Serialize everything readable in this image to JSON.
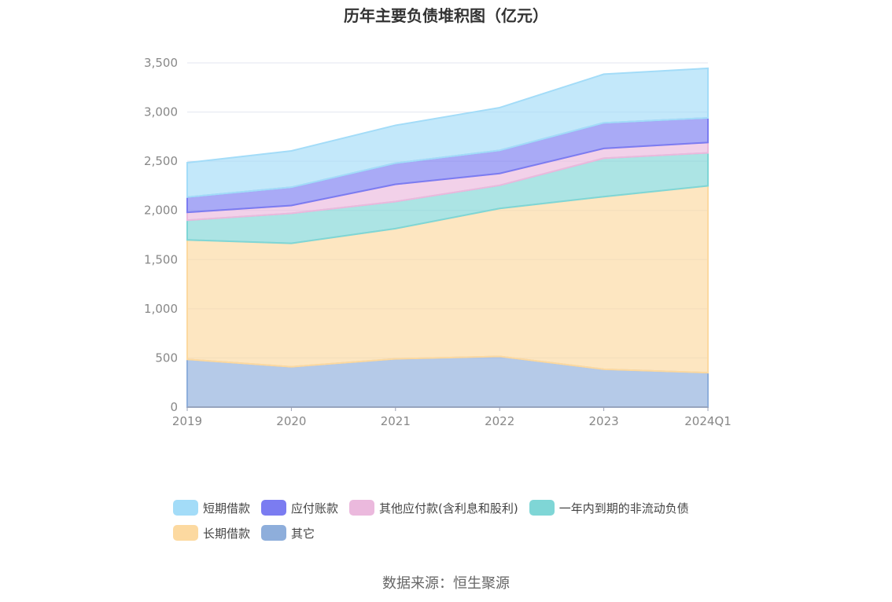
{
  "chart_data": {
    "type": "area",
    "stacked": true,
    "title": "历年主要负债堆积图（亿元）",
    "categories": [
      "2019",
      "2020",
      "2021",
      "2022",
      "2023",
      "2024Q1"
    ],
    "ylim": [
      0,
      3500
    ],
    "yticks": [
      0,
      500,
      1000,
      1500,
      2000,
      2500,
      3000,
      3500
    ],
    "ytick_labels": [
      "0",
      "500",
      "1,000",
      "1,500",
      "2,000",
      "2,500",
      "3,000",
      "3,500"
    ],
    "grid": true,
    "legend_position": "bottom",
    "series": [
      {
        "name": "其它",
        "color": "#8eaedb",
        "values": [
          485,
          410,
          490,
          515,
          385,
          350
        ]
      },
      {
        "name": "长期借款",
        "color": "#fcd9a0",
        "values": [
          1215,
          1255,
          1325,
          1505,
          1755,
          1900
        ]
      },
      {
        "name": "一年内到期的非流动负债",
        "color": "#7fd6d6",
        "values": [
          200,
          305,
          275,
          235,
          390,
          335
        ]
      },
      {
        "name": "其他应付款(含利息和股利)",
        "color": "#ebb9dd",
        "values": [
          80,
          80,
          175,
          120,
          100,
          105
        ]
      },
      {
        "name": "应付账款",
        "color": "#7b7cf1",
        "values": [
          155,
          185,
          215,
          235,
          260,
          250
        ]
      },
      {
        "name": "短期借款",
        "color": "#a3dcf8",
        "values": [
          350,
          370,
          385,
          435,
          495,
          505
        ]
      }
    ]
  },
  "legend": {
    "row1": [
      "短期借款",
      "应付账款",
      "其他应付款(含利息和股利)",
      "一年内到期的非流动负债"
    ],
    "row2": [
      "长期借款",
      "其它"
    ]
  },
  "colors": {
    "短期借款": "#a3dcf8",
    "应付账款": "#7b7cf1",
    "其他应付款(含利息和股利)": "#ebb9dd",
    "一年内到期的非流动负债": "#7fd6d6",
    "长期借款": "#fcd9a0",
    "其它": "#8eaedb"
  },
  "source": "数据来源：恒生聚源"
}
